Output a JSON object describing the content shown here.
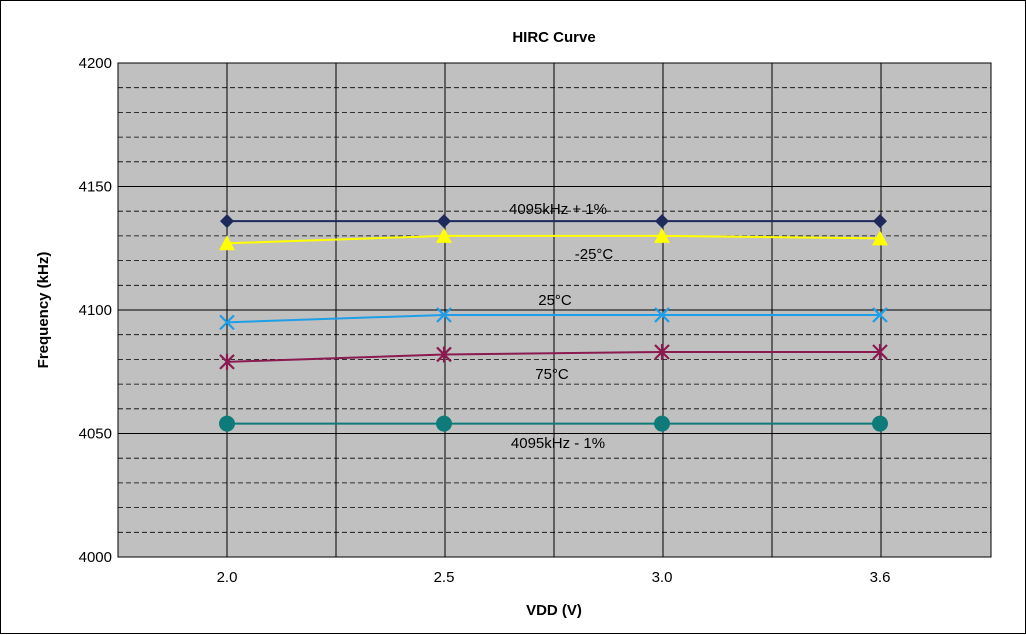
{
  "chart_data": {
    "type": "line",
    "title": "HIRC Curve",
    "xlabel": "VDD (V)",
    "ylabel": "Frequency (kHz)",
    "categories": [
      "2.0",
      "2.5",
      "3.0",
      "3.6"
    ],
    "ylim": [
      4000,
      4200
    ],
    "yticks": [
      "4000",
      "4050",
      "4100",
      "4150",
      "4200"
    ],
    "grid": true,
    "plot_background": "#c0c0c0",
    "series": [
      {
        "name": "4095kHz + 1%",
        "color": "#1f2a5c",
        "marker": "diamond",
        "values": [
          4136,
          4136,
          4136,
          4136
        ]
      },
      {
        "name": "-25°C",
        "color": "#ffff00",
        "marker": "triangle",
        "values": [
          4127,
          4130,
          4130,
          4129
        ]
      },
      {
        "name": "25°C",
        "color": "#1e9ee6",
        "marker": "x",
        "values": [
          4095,
          4098,
          4098,
          4098
        ]
      },
      {
        "name": "75°C",
        "color": "#8b1a50",
        "marker": "asterisk",
        "values": [
          4079,
          4082,
          4083,
          4083
        ]
      },
      {
        "name": "4095kHz - 1%",
        "color": "#0e7a7a",
        "marker": "circle",
        "values": [
          4054,
          4054,
          4054,
          4054
        ]
      }
    ],
    "annotations": [
      "4095kHz + 1%",
      "-25°C",
      "25°C",
      "75°C",
      "4095kHz - 1%"
    ]
  }
}
